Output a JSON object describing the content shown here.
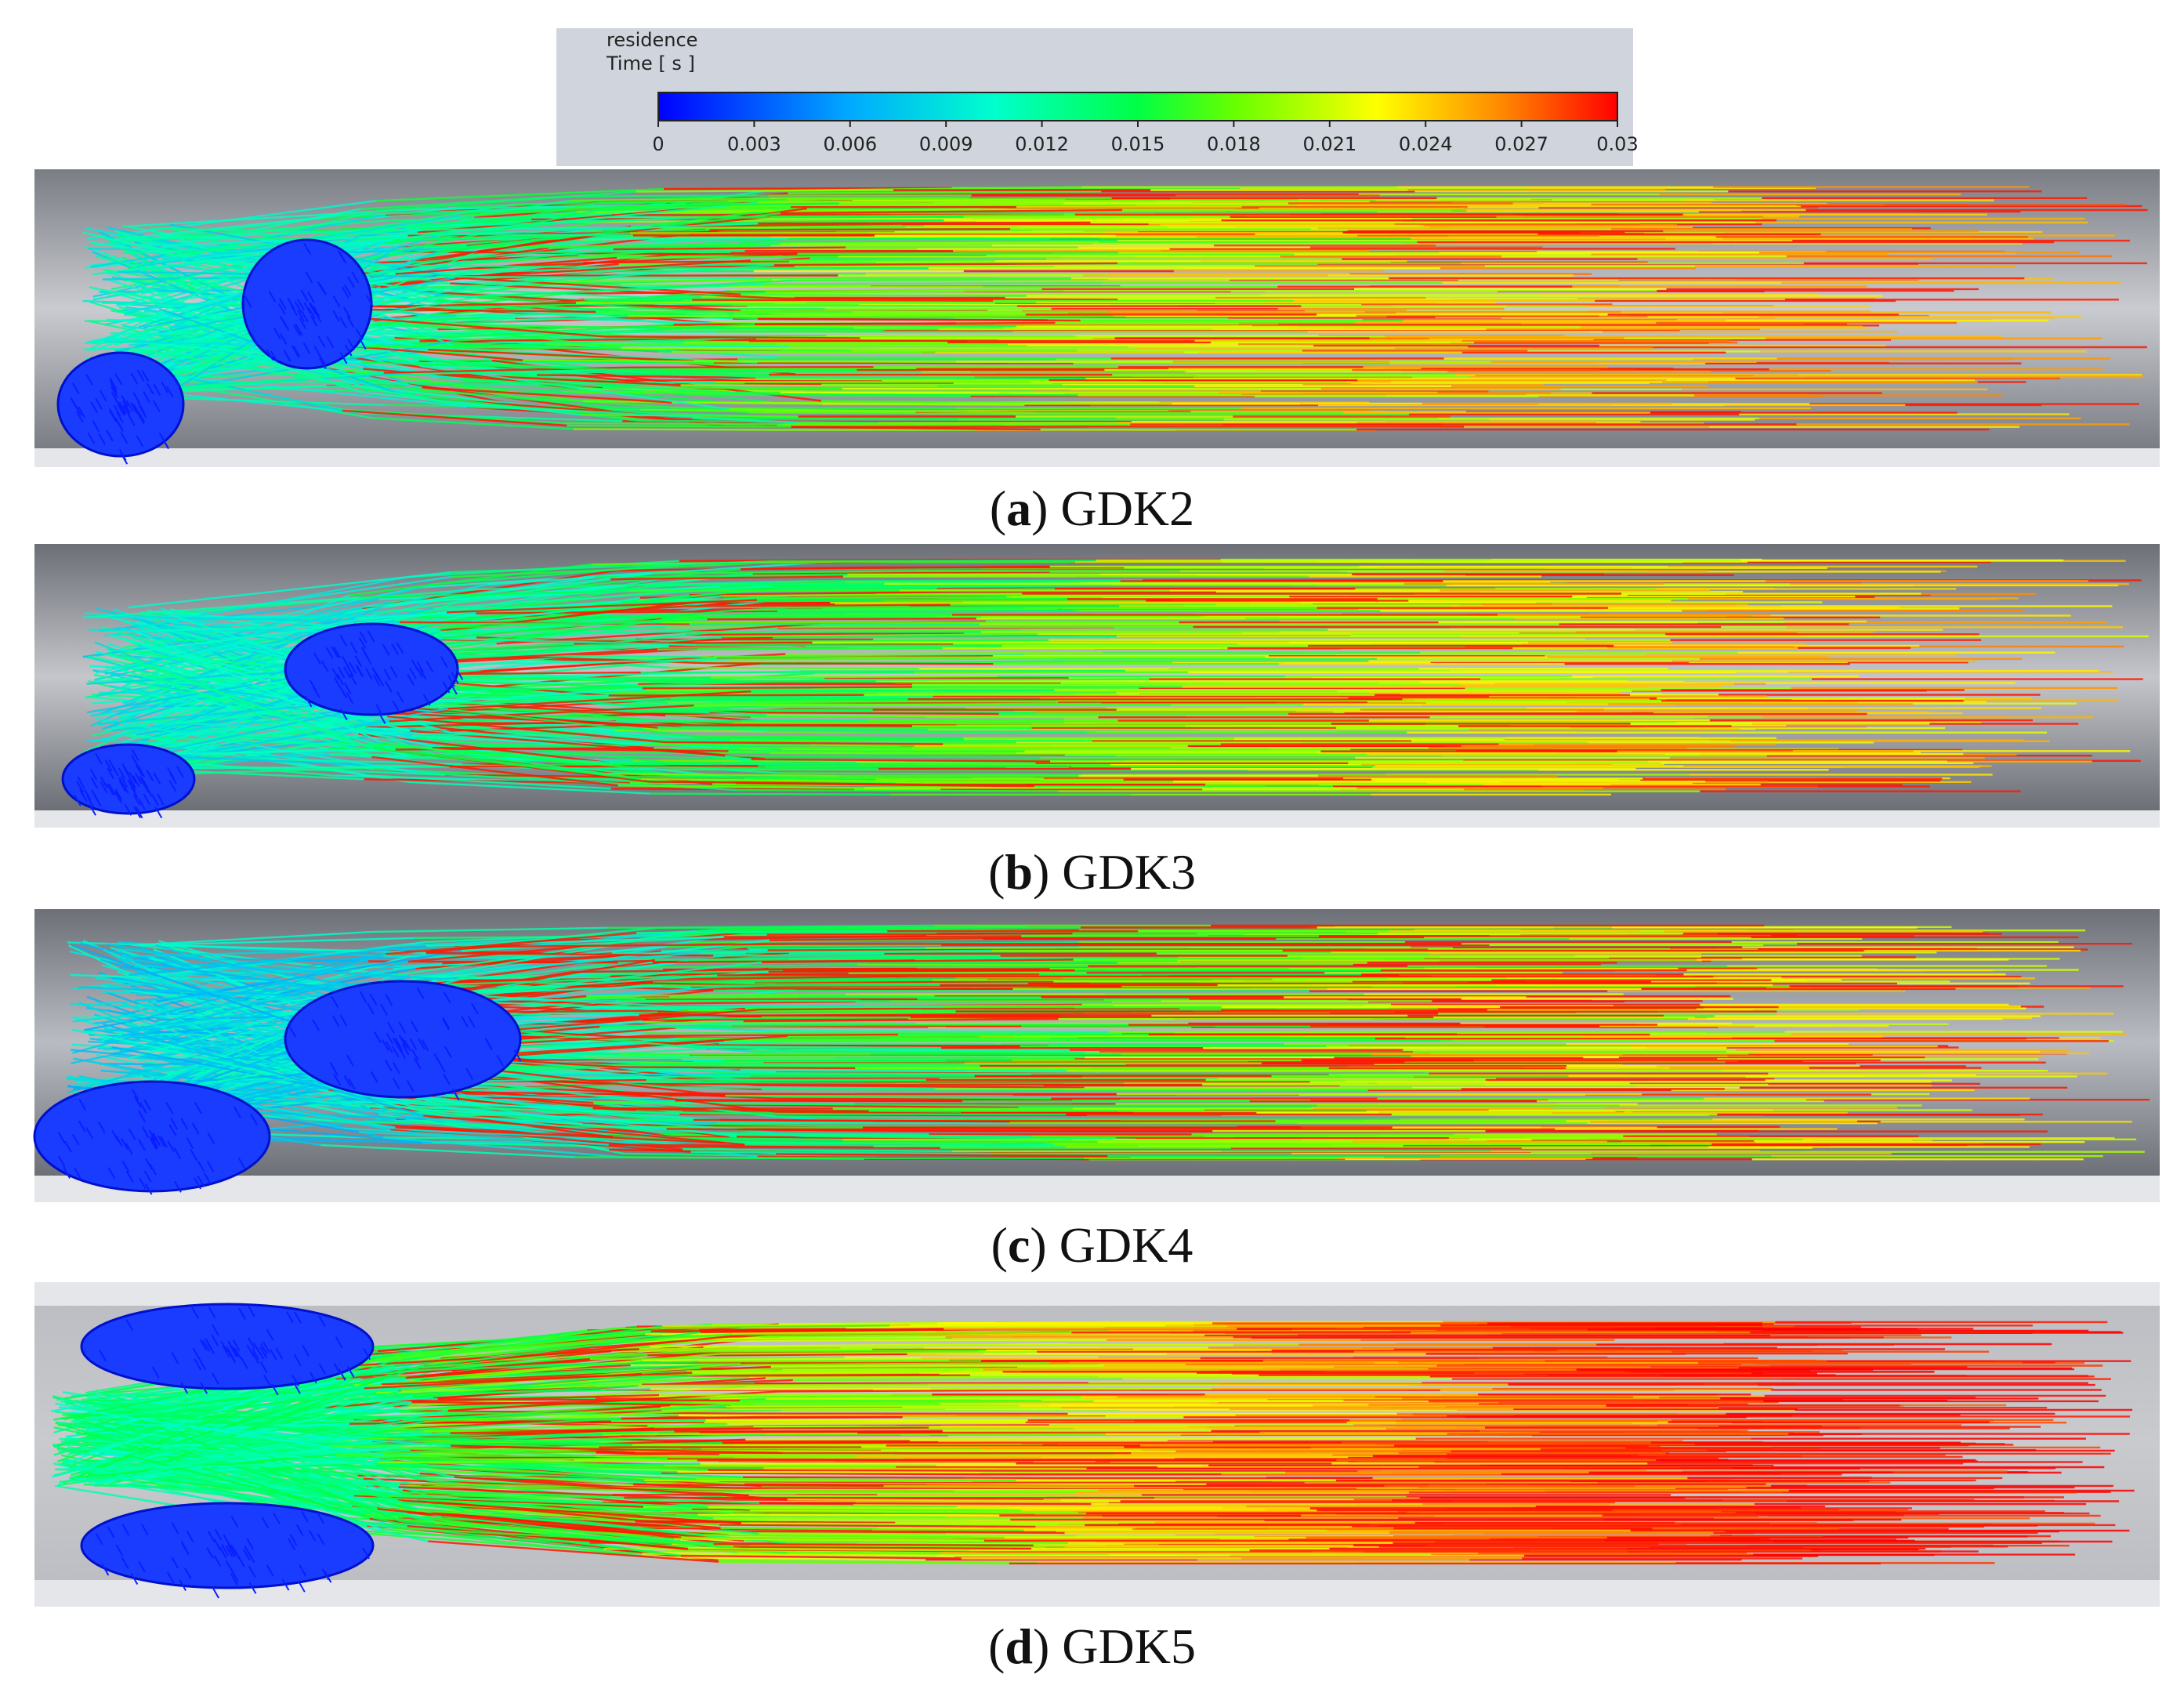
{
  "legend": {
    "title_line1": "residence",
    "title_line2": "Time [ s ]",
    "ticks": [
      "0",
      "0.003",
      "0.006",
      "0.009",
      "0.012",
      "0.015",
      "0.018",
      "0.021",
      "0.024",
      "0.027",
      "0.03"
    ],
    "colors": [
      "#0000ff",
      "#0080ff",
      "#00ffff",
      "#00ff80",
      "#00ff00",
      "#80ff00",
      "#ffff00",
      "#ff8000",
      "#ff0000"
    ]
  },
  "panels": [
    {
      "letter": "a",
      "label": "GDK2"
    },
    {
      "letter": "b",
      "label": "GDK3"
    },
    {
      "letter": "c",
      "label": "GDK4"
    },
    {
      "letter": "d",
      "label": "GDK5"
    }
  ]
}
